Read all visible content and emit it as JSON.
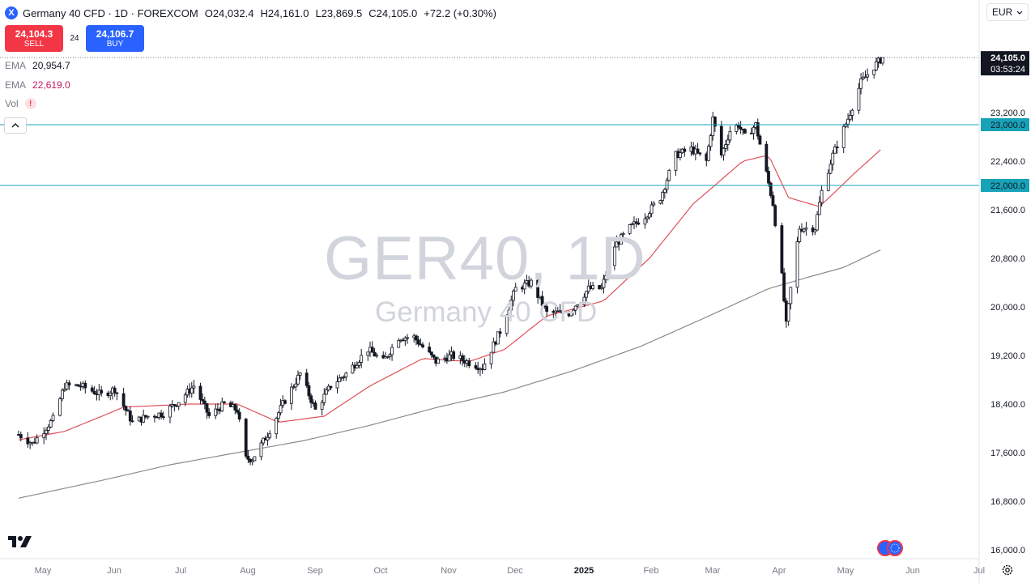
{
  "header": {
    "symbol_icon": "X",
    "title": "Germany 40 CFD · 1D · FOREXCOM",
    "o_label": "O",
    "o_value": "24,032.4",
    "h_label": "H",
    "h_value": "24,161.0",
    "l_label": "L",
    "l_value": "23,869.5",
    "c_label": "C",
    "c_value": "24,105.0",
    "change": "+72.2 (+0.30%)"
  },
  "trade": {
    "sell_price": "24,104.3",
    "sell_label": "SELL",
    "spread": "24",
    "buy_price": "24,106.7",
    "buy_label": "BUY"
  },
  "indicators": [
    {
      "label": "EMA",
      "value": "20,954.7"
    },
    {
      "label": "EMA",
      "value": "22,619.0"
    },
    {
      "label": "Vol",
      "value": "!"
    }
  ],
  "controls": {
    "currency": "EUR",
    "collapse_icon": "chevron-up-icon",
    "settings_icon": "gear-icon"
  },
  "watermark": {
    "symbol": "GER40, 1D",
    "name": "Germany 40 CFD"
  },
  "colors": {
    "candle": "#131722",
    "ema_fast": "#e0505a",
    "ema_slow": "#8c8c8c",
    "hline": "#17a2b8",
    "sell": "#f23645",
    "buy": "#2962ff"
  },
  "chart_data": {
    "type": "candlestick",
    "title": "Germany 40 CFD · 1D · FOREXCOM",
    "ylim": [
      16000,
      24400
    ],
    "y_ticks": [
      16000,
      16800,
      17600,
      18400,
      19200,
      20000,
      20800,
      21600,
      22400,
      23200
    ],
    "y_tick_labels": [
      "16,000.0",
      "16,800.0",
      "17,600.0",
      "18,400.0",
      "19,200.0",
      "20,000.0",
      "20,800.0",
      "21,600.0",
      "22,400.0",
      "23,200.0"
    ],
    "x_labels": [
      "May",
      "Jun",
      "Jul",
      "Aug",
      "Sep",
      "Oct",
      "Nov",
      "Dec",
      "2025",
      "Feb",
      "Mar",
      "Apr",
      "May",
      "Jun",
      "Jul"
    ],
    "price_path": [
      [
        "2024-04-25",
        17900
      ],
      [
        "2024-05-01",
        17750
      ],
      [
        "2024-05-10",
        18150
      ],
      [
        "2024-05-15",
        18700
      ],
      [
        "2024-05-22",
        18700
      ],
      [
        "2024-05-31",
        18550
      ],
      [
        "2024-06-06",
        18650
      ],
      [
        "2024-06-11",
        18300
      ],
      [
        "2024-06-14",
        18100
      ],
      [
        "2024-06-21",
        18200
      ],
      [
        "2024-06-28",
        18250
      ],
      [
        "2024-07-05",
        18450
      ],
      [
        "2024-07-12",
        18700
      ],
      [
        "2024-07-19",
        18200
      ],
      [
        "2024-07-26",
        18400
      ],
      [
        "2024-08-01",
        18300
      ],
      [
        "2024-08-05",
        17500
      ],
      [
        "2024-08-08",
        17500
      ],
      [
        "2024-08-15",
        17900
      ],
      [
        "2024-08-22",
        18400
      ],
      [
        "2024-08-30",
        18900
      ],
      [
        "2024-09-06",
        18300
      ],
      [
        "2024-09-13",
        18700
      ],
      [
        "2024-09-20",
        18900
      ],
      [
        "2024-09-30",
        19300
      ],
      [
        "2024-10-07",
        19100
      ],
      [
        "2024-10-14",
        19500
      ],
      [
        "2024-10-21",
        19500
      ],
      [
        "2024-10-31",
        19100
      ],
      [
        "2024-11-07",
        19200
      ],
      [
        "2024-11-14",
        19100
      ],
      [
        "2024-11-21",
        19000
      ],
      [
        "2024-11-29",
        19600
      ],
      [
        "2024-12-06",
        20300
      ],
      [
        "2024-12-13",
        20400
      ],
      [
        "2024-12-20",
        19900
      ],
      [
        "2024-12-30",
        19900
      ],
      [
        "2025-01-08",
        20300
      ],
      [
        "2025-01-14",
        20300
      ],
      [
        "2025-01-20",
        21000
      ],
      [
        "2025-01-27",
        21300
      ],
      [
        "2025-02-03",
        21500
      ],
      [
        "2025-02-10",
        21800
      ],
      [
        "2025-02-17",
        22500
      ],
      [
        "2025-02-24",
        22600
      ],
      [
        "2025-03-03",
        22400
      ],
      [
        "2025-03-06",
        23100
      ],
      [
        "2025-03-10",
        22500
      ],
      [
        "2025-03-14",
        22900
      ],
      [
        "2025-03-18",
        23000
      ],
      [
        "2025-03-21",
        22800
      ],
      [
        "2025-03-26",
        23000
      ],
      [
        "2025-03-31",
        22200
      ],
      [
        "2025-04-03",
        21700
      ],
      [
        "2025-04-07",
        20500
      ],
      [
        "2025-04-09",
        19700
      ],
      [
        "2025-04-11",
        20300
      ],
      [
        "2025-04-15",
        21300
      ],
      [
        "2025-04-22",
        21300
      ],
      [
        "2025-04-25",
        21900
      ],
      [
        "2025-04-30",
        22500
      ],
      [
        "2025-05-07",
        23100
      ],
      [
        "2025-05-13",
        23700
      ],
      [
        "2025-05-20",
        24000
      ],
      [
        "2025-05-23",
        24105
      ]
    ],
    "ema_fast": {
      "label": "EMA",
      "value": "22,619.0",
      "path": [
        [
          "2024-04-25",
          17810
        ],
        [
          "2024-05-15",
          17950
        ],
        [
          "2024-06-10",
          18350
        ],
        [
          "2024-07-10",
          18400
        ],
        [
          "2024-08-01",
          18400
        ],
        [
          "2024-08-20",
          18100
        ],
        [
          "2024-09-10",
          18200
        ],
        [
          "2024-10-01",
          18700
        ],
        [
          "2024-10-25",
          19150
        ],
        [
          "2024-11-15",
          19100
        ],
        [
          "2024-12-01",
          19300
        ],
        [
          "2024-12-20",
          19850
        ],
        [
          "2025-01-15",
          20100
        ],
        [
          "2025-02-05",
          20800
        ],
        [
          "2025-02-25",
          21700
        ],
        [
          "2025-03-20",
          22400
        ],
        [
          "2025-04-01",
          22500
        ],
        [
          "2025-04-10",
          21800
        ],
        [
          "2025-04-24",
          21650
        ],
        [
          "2025-05-10",
          22200
        ],
        [
          "2025-05-23",
          22619
        ]
      ]
    },
    "ema_slow": {
      "label": "EMA",
      "value": "20,954.7",
      "path": [
        [
          "2024-04-25",
          16850
        ],
        [
          "2024-06-01",
          17150
        ],
        [
          "2024-07-01",
          17400
        ],
        [
          "2024-08-01",
          17600
        ],
        [
          "2024-09-01",
          17800
        ],
        [
          "2024-10-01",
          18050
        ],
        [
          "2024-11-01",
          18350
        ],
        [
          "2024-12-01",
          18600
        ],
        [
          "2025-01-01",
          18950
        ],
        [
          "2025-02-01",
          19350
        ],
        [
          "2025-03-01",
          19800
        ],
        [
          "2025-04-01",
          20300
        ],
        [
          "2025-04-20",
          20500
        ],
        [
          "2025-05-05",
          20650
        ],
        [
          "2025-05-23",
          20954.7
        ]
      ]
    },
    "horizontal_lines": [
      {
        "value": 23000,
        "label": "23,000.0"
      },
      {
        "value": 22000,
        "label": "22,000.0"
      }
    ],
    "last_price": {
      "value": "24,105.0",
      "countdown": "03:53:24"
    },
    "grid": false
  }
}
